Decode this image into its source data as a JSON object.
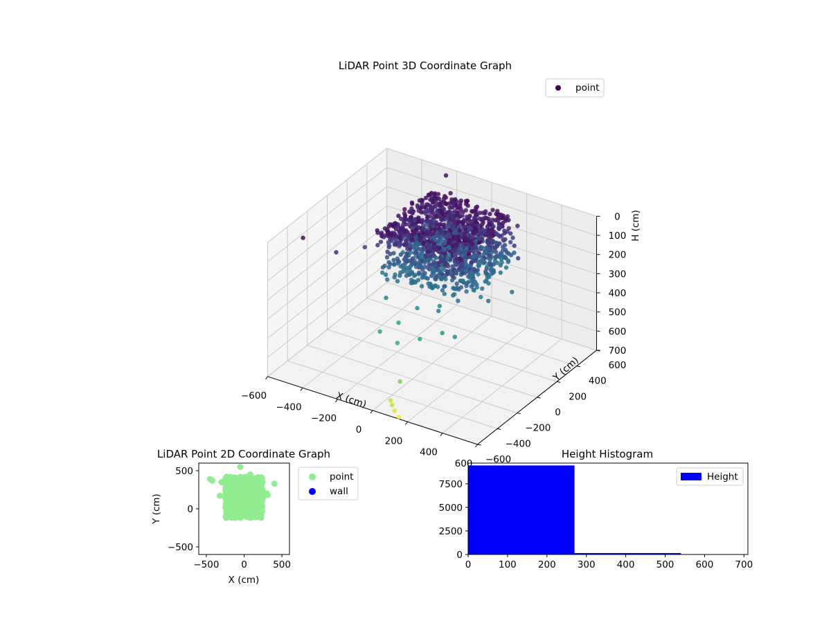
{
  "chart_data": [
    {
      "id": "3d",
      "type": "scatter",
      "title": "LiDAR Point 3D Coordinate Graph",
      "xlabel": "X (cm)",
      "ylabel": "Y (cm)",
      "zlabel": "H (cm)",
      "xlim": [
        -600,
        600
      ],
      "ylim": [
        -600,
        600
      ],
      "zlim": [
        0,
        700
      ],
      "z_inverted": true,
      "colormap": "viridis",
      "xticks": [
        "−600",
        "−400",
        "−200",
        "0",
        "200",
        "400",
        "600"
      ],
      "yticks": [
        "−600",
        "−400",
        "−200",
        "0",
        "200",
        "400",
        "600"
      ],
      "zticks": [
        "0",
        "100",
        "200",
        "300",
        "400",
        "500",
        "600",
        "700"
      ],
      "legend": {
        "location": "upper-right",
        "entries": [
          {
            "label": "point",
            "color": "#440154"
          }
        ]
      },
      "series": [
        {
          "name": "point",
          "cluster": {
            "x_range": [
              -250,
              250
            ],
            "y_range": [
              -120,
              420
            ],
            "h_range": [
              30,
              280
            ],
            "approx_count": 9500
          },
          "outliers": [
            {
              "x": -500,
              "y": -420,
              "h": 20
            },
            {
              "x": -250,
              "y": 580,
              "h": 30
            },
            {
              "x": -350,
              "y": -350,
              "h": 80
            },
            {
              "x": -150,
              "y": 450,
              "h": 40
            },
            {
              "x": -300,
              "y": -150,
              "h": 120
            },
            {
              "x": 150,
              "y": 400,
              "h": 60
            },
            {
              "x": 250,
              "y": 420,
              "h": 80
            },
            {
              "x": 300,
              "y": 300,
              "h": 120
            },
            {
              "x": 350,
              "y": 250,
              "h": 150
            },
            {
              "x": 400,
              "y": 100,
              "h": 250
            },
            {
              "x": 250,
              "y": 50,
              "h": 300
            },
            {
              "x": 100,
              "y": -100,
              "h": 330
            },
            {
              "x": 0,
              "y": -150,
              "h": 350
            },
            {
              "x": -150,
              "y": -200,
              "h": 320
            },
            {
              "x": -200,
              "y": -100,
              "h": 280
            },
            {
              "x": 200,
              "y": -250,
              "h": 380
            },
            {
              "x": 300,
              "y": -300,
              "h": 350
            },
            {
              "x": -50,
              "y": -250,
              "h": 400
            },
            {
              "x": 100,
              "y": -300,
              "h": 420
            },
            {
              "x": 0,
              "y": -350,
              "h": 450
            },
            {
              "x": 150,
              "y": -200,
              "h": 300
            },
            {
              "x": -100,
              "y": -350,
              "h": 420
            },
            {
              "x": 250,
              "y": 150,
              "h": 200
            },
            {
              "x": 350,
              "y": -50,
              "h": 250
            },
            {
              "x": 100,
              "y": -500,
              "h": 560
            },
            {
              "x": 80,
              "y": -560,
              "h": 640
            },
            {
              "x": 100,
              "y": -580,
              "h": 650
            },
            {
              "x": 120,
              "y": -590,
              "h": 670
            },
            {
              "x": 150,
              "y": -600,
              "h": 690
            }
          ]
        }
      ]
    },
    {
      "id": "2d",
      "type": "scatter",
      "title": "LiDAR Point 2D Coordinate Graph",
      "xlabel": "X (cm)",
      "ylabel": "Y (cm)",
      "xlim": [
        -600,
        600
      ],
      "ylim": [
        -600,
        600
      ],
      "xticks": [
        -500,
        0,
        500
      ],
      "yticks": [
        -500,
        0,
        500
      ],
      "legend": {
        "location": "outside-right",
        "entries": [
          {
            "label": "point",
            "color": "#90ee90"
          },
          {
            "label": "wall",
            "color": "#0000ff"
          }
        ]
      },
      "series": [
        {
          "name": "point",
          "color": "#90ee90",
          "cluster": {
            "x_range": [
              -250,
              250
            ],
            "y_range": [
              -120,
              420
            ]
          },
          "outliers": [
            {
              "x": -450,
              "y": 390
            },
            {
              "x": -420,
              "y": 370
            },
            {
              "x": -320,
              "y": 170
            },
            {
              "x": -300,
              "y": 350
            },
            {
              "x": -50,
              "y": 550
            },
            {
              "x": 80,
              "y": 450
            },
            {
              "x": 230,
              "y": 410
            },
            {
              "x": 300,
              "y": 200
            },
            {
              "x": 310,
              "y": 180
            },
            {
              "x": 400,
              "y": 330
            }
          ]
        },
        {
          "name": "wall",
          "color": "#0000ff",
          "points": []
        }
      ]
    },
    {
      "id": "hist",
      "type": "bar",
      "title": "Height Histogram",
      "xlim": [
        0,
        710
      ],
      "ylim": [
        0,
        9700
      ],
      "xticks": [
        0,
        100,
        200,
        300,
        400,
        500,
        600,
        700
      ],
      "yticks": [
        0,
        2500,
        5000,
        7500
      ],
      "legend": {
        "location": "upper-right",
        "entries": [
          {
            "label": "Height",
            "color": "#0000ff"
          }
        ]
      },
      "bins": [
        {
          "from": 0,
          "to": 270,
          "count": 9450
        },
        {
          "from": 270,
          "to": 540,
          "count": 150
        },
        {
          "from": 540,
          "to": 710,
          "count": 10
        }
      ],
      "color": "#0000ff"
    }
  ]
}
